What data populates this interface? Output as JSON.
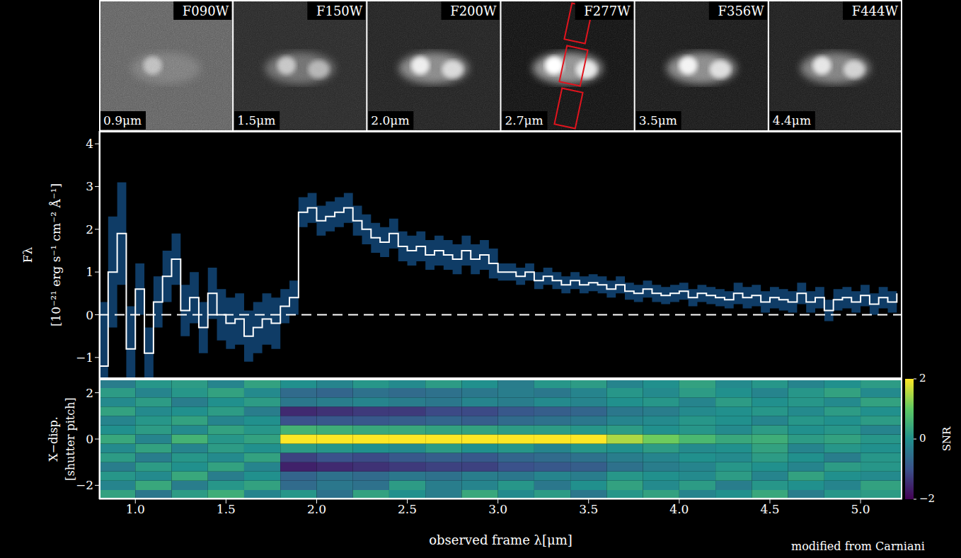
{
  "image_strip": {
    "panels": [
      {
        "filter": "F090W",
        "wavelength": "0.9μm"
      },
      {
        "filter": "F150W",
        "wavelength": "1.5μm"
      },
      {
        "filter": "F200W",
        "wavelength": "2.0μm"
      },
      {
        "filter": "F277W",
        "wavelength": "2.7μm"
      },
      {
        "filter": "F356W",
        "wavelength": "3.5μm"
      },
      {
        "filter": "F444W",
        "wavelength": "4.4μm"
      }
    ]
  },
  "chart_data": [
    {
      "type": "line",
      "line_style": "step",
      "color": "#ffffff",
      "tick_labels": "y",
      "ylabel": [
        "Fλ",
        "[10⁻²¹ erg s⁻¹ cm⁻² Å⁻¹]"
      ],
      "x": [
        0.8,
        0.85,
        0.9,
        0.95,
        1.0,
        1.05,
        1.1,
        1.15,
        1.2,
        1.25,
        1.3,
        1.35,
        1.4,
        1.45,
        1.5,
        1.55,
        1.6,
        1.65,
        1.7,
        1.75,
        1.8,
        1.85,
        1.9,
        1.95,
        2.0,
        2.05,
        2.1,
        2.15,
        2.2,
        2.25,
        2.3,
        2.35,
        2.4,
        2.45,
        2.5,
        2.55,
        2.6,
        2.65,
        2.7,
        2.75,
        2.8,
        2.85,
        2.9,
        2.95,
        3.0,
        3.05,
        3.1,
        3.15,
        3.2,
        3.25,
        3.3,
        3.35,
        3.4,
        3.45,
        3.5,
        3.55,
        3.6,
        3.65,
        3.7,
        3.75,
        3.8,
        3.85,
        3.9,
        3.95,
        4.0,
        4.05,
        4.1,
        4.15,
        4.2,
        4.25,
        4.3,
        4.35,
        4.4,
        4.45,
        4.5,
        4.55,
        4.6,
        4.65,
        4.7,
        4.75,
        4.8,
        4.85,
        4.9,
        4.95,
        5.0,
        5.05,
        5.1,
        5.15,
        5.2
      ],
      "values": [
        -1.2,
        1.0,
        1.9,
        -0.8,
        0.6,
        -0.9,
        0.3,
        0.9,
        1.3,
        0.1,
        0.4,
        -0.3,
        0.5,
        0.0,
        -0.2,
        -0.1,
        -0.5,
        -0.3,
        -0.1,
        -0.2,
        0.2,
        0.4,
        2.4,
        2.5,
        2.2,
        2.3,
        2.4,
        2.5,
        2.2,
        2.0,
        1.8,
        1.7,
        1.9,
        1.6,
        1.5,
        1.6,
        1.4,
        1.5,
        1.4,
        1.3,
        1.5,
        1.3,
        1.4,
        1.2,
        1.0,
        1.0,
        0.9,
        1.0,
        0.8,
        0.9,
        0.8,
        0.7,
        0.8,
        0.7,
        0.75,
        0.7,
        0.6,
        0.7,
        0.55,
        0.5,
        0.6,
        0.5,
        0.45,
        0.5,
        0.55,
        0.4,
        0.5,
        0.45,
        0.4,
        0.35,
        0.5,
        0.4,
        0.45,
        0.3,
        0.4,
        0.35,
        0.3,
        0.5,
        0.3,
        0.4,
        0.1,
        0.35,
        0.4,
        0.3,
        0.45,
        0.25,
        0.4,
        0.3,
        0.5
      ],
      "errors": [
        1.5,
        1.3,
        1.2,
        1.0,
        0.6,
        0.6,
        0.6,
        0.6,
        0.6,
        0.6,
        0.6,
        0.6,
        0.6,
        0.6,
        0.6,
        0.6,
        0.6,
        0.6,
        0.6,
        0.6,
        0.4,
        0.4,
        0.35,
        0.35,
        0.35,
        0.35,
        0.35,
        0.35,
        0.35,
        0.35,
        0.35,
        0.35,
        0.35,
        0.35,
        0.35,
        0.35,
        0.35,
        0.35,
        0.35,
        0.35,
        0.35,
        0.35,
        0.35,
        0.35,
        0.2,
        0.2,
        0.2,
        0.2,
        0.2,
        0.2,
        0.2,
        0.2,
        0.2,
        0.2,
        0.2,
        0.2,
        0.2,
        0.2,
        0.2,
        0.2,
        0.2,
        0.2,
        0.2,
        0.2,
        0.2,
        0.2,
        0.2,
        0.2,
        0.2,
        0.2,
        0.25,
        0.25,
        0.25,
        0.25,
        0.25,
        0.25,
        0.25,
        0.25,
        0.25,
        0.25,
        0.25,
        0.25,
        0.25,
        0.25,
        0.25,
        0.25,
        0.25,
        0.25,
        0.25
      ],
      "xlim": [
        0.8,
        5.23
      ],
      "ylim": [
        -1.5,
        4.3
      ],
      "yticks": [
        {
          "value": -1,
          "label": "−1"
        },
        0,
        1,
        2,
        3,
        4
      ],
      "reference_line": 0
    },
    {
      "type": "heatmap",
      "xlabel": "observed frame λ[μm]",
      "ylabel": [
        "X−disp.",
        "[shutter pitch]"
      ],
      "xlim": [
        0.8,
        5.23
      ],
      "ylim": [
        -2.6,
        2.6
      ],
      "xticks": [
        {
          "value": 1,
          "label": "1.0"
        },
        1.5,
        {
          "value": 2,
          "label": "2.0"
        },
        2.5,
        {
          "value": 3,
          "label": "3.0"
        },
        3.5,
        {
          "value": 4,
          "label": "4.0"
        },
        4.5,
        {
          "value": 5,
          "label": "5.0"
        }
      ],
      "yticks": [
        {
          "value": -2,
          "label": "−2"
        },
        0,
        2
      ],
      "x_edges": [
        0.8,
        1.0,
        1.2,
        1.4,
        1.6,
        1.8,
        2.0,
        2.2,
        2.4,
        2.6,
        2.8,
        3.0,
        3.2,
        3.4,
        3.6,
        3.8,
        4.0,
        4.2,
        4.4,
        4.6,
        4.8,
        5.0,
        5.23
      ],
      "y_edges": [
        -2.6,
        -2.2,
        -1.8,
        -1.4,
        -1.0,
        -0.6,
        -0.2,
        0.2,
        0.6,
        1.0,
        1.4,
        1.8,
        2.2,
        2.6
      ],
      "cells": [
        [
          0.3,
          -0.4,
          0.2,
          0.5,
          -0.2,
          0.1,
          -0.5,
          0.3,
          0.0,
          -0.3,
          0.4,
          -0.1,
          0.2,
          -0.4,
          0.1,
          0.3,
          -0.2,
          0.0,
          0.4,
          -0.3,
          0.1,
          0.2
        ],
        [
          -0.2,
          0.4,
          -0.3,
          0.1,
          0.3,
          -0.6,
          -0.4,
          -0.5,
          0.2,
          -0.3,
          -0.2,
          0.1,
          -0.4,
          0.0,
          0.3,
          -0.1,
          0.2,
          -0.3,
          0.1,
          0.0,
          -0.2,
          0.3
        ],
        [
          0.1,
          -0.1,
          0.4,
          -0.3,
          0.0,
          -0.7,
          -0.5,
          -0.6,
          -0.4,
          -0.5,
          -0.3,
          -0.4,
          -0.2,
          -0.3,
          0.1,
          0.0,
          -0.1,
          0.2,
          -0.2,
          0.3,
          0.0,
          -0.1
        ],
        [
          -0.3,
          0.2,
          0.0,
          0.3,
          -0.2,
          -1.6,
          -1.5,
          -1.4,
          -1.3,
          -1.2,
          -1.2,
          -1.0,
          -0.9,
          -0.8,
          -0.5,
          -0.3,
          -0.2,
          0.1,
          0.0,
          -0.2,
          0.2,
          0.1
        ],
        [
          0.2,
          -0.3,
          0.1,
          -0.1,
          0.3,
          -1.2,
          -1.0,
          -1.1,
          -0.9,
          -0.8,
          -0.9,
          -0.7,
          -0.6,
          -0.5,
          -0.3,
          -0.2,
          0.0,
          -0.1,
          0.2,
          0.0,
          -0.3,
          0.1
        ],
        [
          -0.1,
          0.3,
          -0.2,
          0.2,
          0.0,
          0.2,
          0.1,
          0.0,
          -0.1,
          0.2,
          0.0,
          0.1,
          -0.2,
          0.1,
          0.0,
          0.2,
          -0.1,
          0.0,
          0.3,
          -0.2,
          0.1,
          0.0
        ],
        [
          0.4,
          -0.2,
          0.6,
          0.1,
          0.3,
          3.0,
          3.0,
          2.9,
          2.8,
          2.7,
          2.6,
          2.4,
          2.2,
          2.0,
          1.5,
          1.1,
          0.7,
          0.4,
          0.5,
          0.2,
          0.3,
          0.1
        ],
        [
          0.0,
          0.2,
          -0.1,
          0.3,
          0.1,
          0.6,
          0.5,
          0.4,
          0.4,
          0.3,
          0.3,
          0.2,
          0.2,
          0.1,
          0.2,
          0.0,
          0.1,
          -0.1,
          0.2,
          0.0,
          0.1,
          -0.2
        ],
        [
          -0.2,
          0.1,
          0.3,
          -0.2,
          0.0,
          -1.0,
          -0.9,
          -0.9,
          -0.8,
          -0.7,
          -0.8,
          -0.6,
          -0.5,
          -0.4,
          -0.2,
          -0.1,
          0.1,
          0.0,
          -0.2,
          0.1,
          0.0,
          0.2
        ],
        [
          0.3,
          -0.1,
          0.0,
          0.2,
          -0.3,
          -1.5,
          -1.4,
          -1.3,
          -1.3,
          -1.1,
          -1.1,
          -0.9,
          -0.8,
          -0.7,
          -0.4,
          -0.3,
          -0.1,
          0.0,
          0.1,
          -0.1,
          0.2,
          0.0
        ],
        [
          -0.1,
          0.2,
          -0.3,
          0.0,
          0.2,
          -0.4,
          -0.3,
          -0.2,
          -0.3,
          -0.4,
          -0.2,
          -0.3,
          -0.1,
          -0.2,
          0.0,
          0.1,
          -0.2,
          0.2,
          0.0,
          0.1,
          -0.1,
          0.3
        ],
        [
          0.2,
          -0.2,
          0.1,
          0.3,
          -0.1,
          -0.6,
          -0.7,
          -0.5,
          -0.6,
          -0.5,
          -0.4,
          -0.3,
          -0.4,
          -0.2,
          0.1,
          -0.1,
          0.2,
          0.0,
          -0.2,
          0.1,
          0.3,
          -0.1
        ],
        [
          -0.3,
          0.1,
          0.2,
          -0.2,
          0.3,
          0.0,
          -0.2,
          0.1,
          -0.1,
          0.2,
          0.0,
          -0.3,
          0.1,
          0.2,
          -0.2,
          0.0,
          0.3,
          -0.1,
          0.1,
          -0.2,
          0.0,
          0.2
        ]
      ],
      "colorbar": {
        "range": [
          -2,
          2
        ],
        "ticks": [
          {
            "value": -2,
            "label": "−2"
          },
          0,
          2
        ],
        "label": "SNR"
      }
    }
  ],
  "credit": "modified from Carniani"
}
